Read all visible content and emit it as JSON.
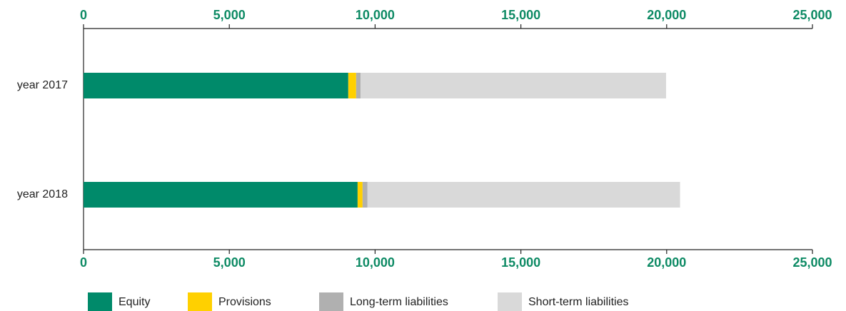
{
  "chart_data": {
    "type": "stacked_barh",
    "categories": [
      "year 2017",
      "year 2018"
    ],
    "series": [
      {
        "name": "Equity",
        "color": "#008a6a",
        "values": [
          9080,
          9400
        ]
      },
      {
        "name": "Provisions",
        "color": "#ffd000",
        "values": [
          270,
          170
        ]
      },
      {
        "name": "Long-term liabilities",
        "color": "#b0b0b0",
        "values": [
          150,
          170
        ]
      },
      {
        "name": "Short-term liabilities",
        "color": "#d9d9d9",
        "values": [
          10480,
          10720
        ]
      }
    ],
    "xlim": [
      0,
      25000
    ],
    "xticks": [
      0,
      {
        "value": 5000,
        "label": "5,000"
      },
      {
        "value": 10000,
        "label": "10,000"
      },
      {
        "value": 15000,
        "label": "15,000"
      },
      {
        "value": 20000,
        "label": "20,000"
      },
      {
        "value": 25000,
        "label": "25,000"
      }
    ],
    "legend": "bottom"
  }
}
